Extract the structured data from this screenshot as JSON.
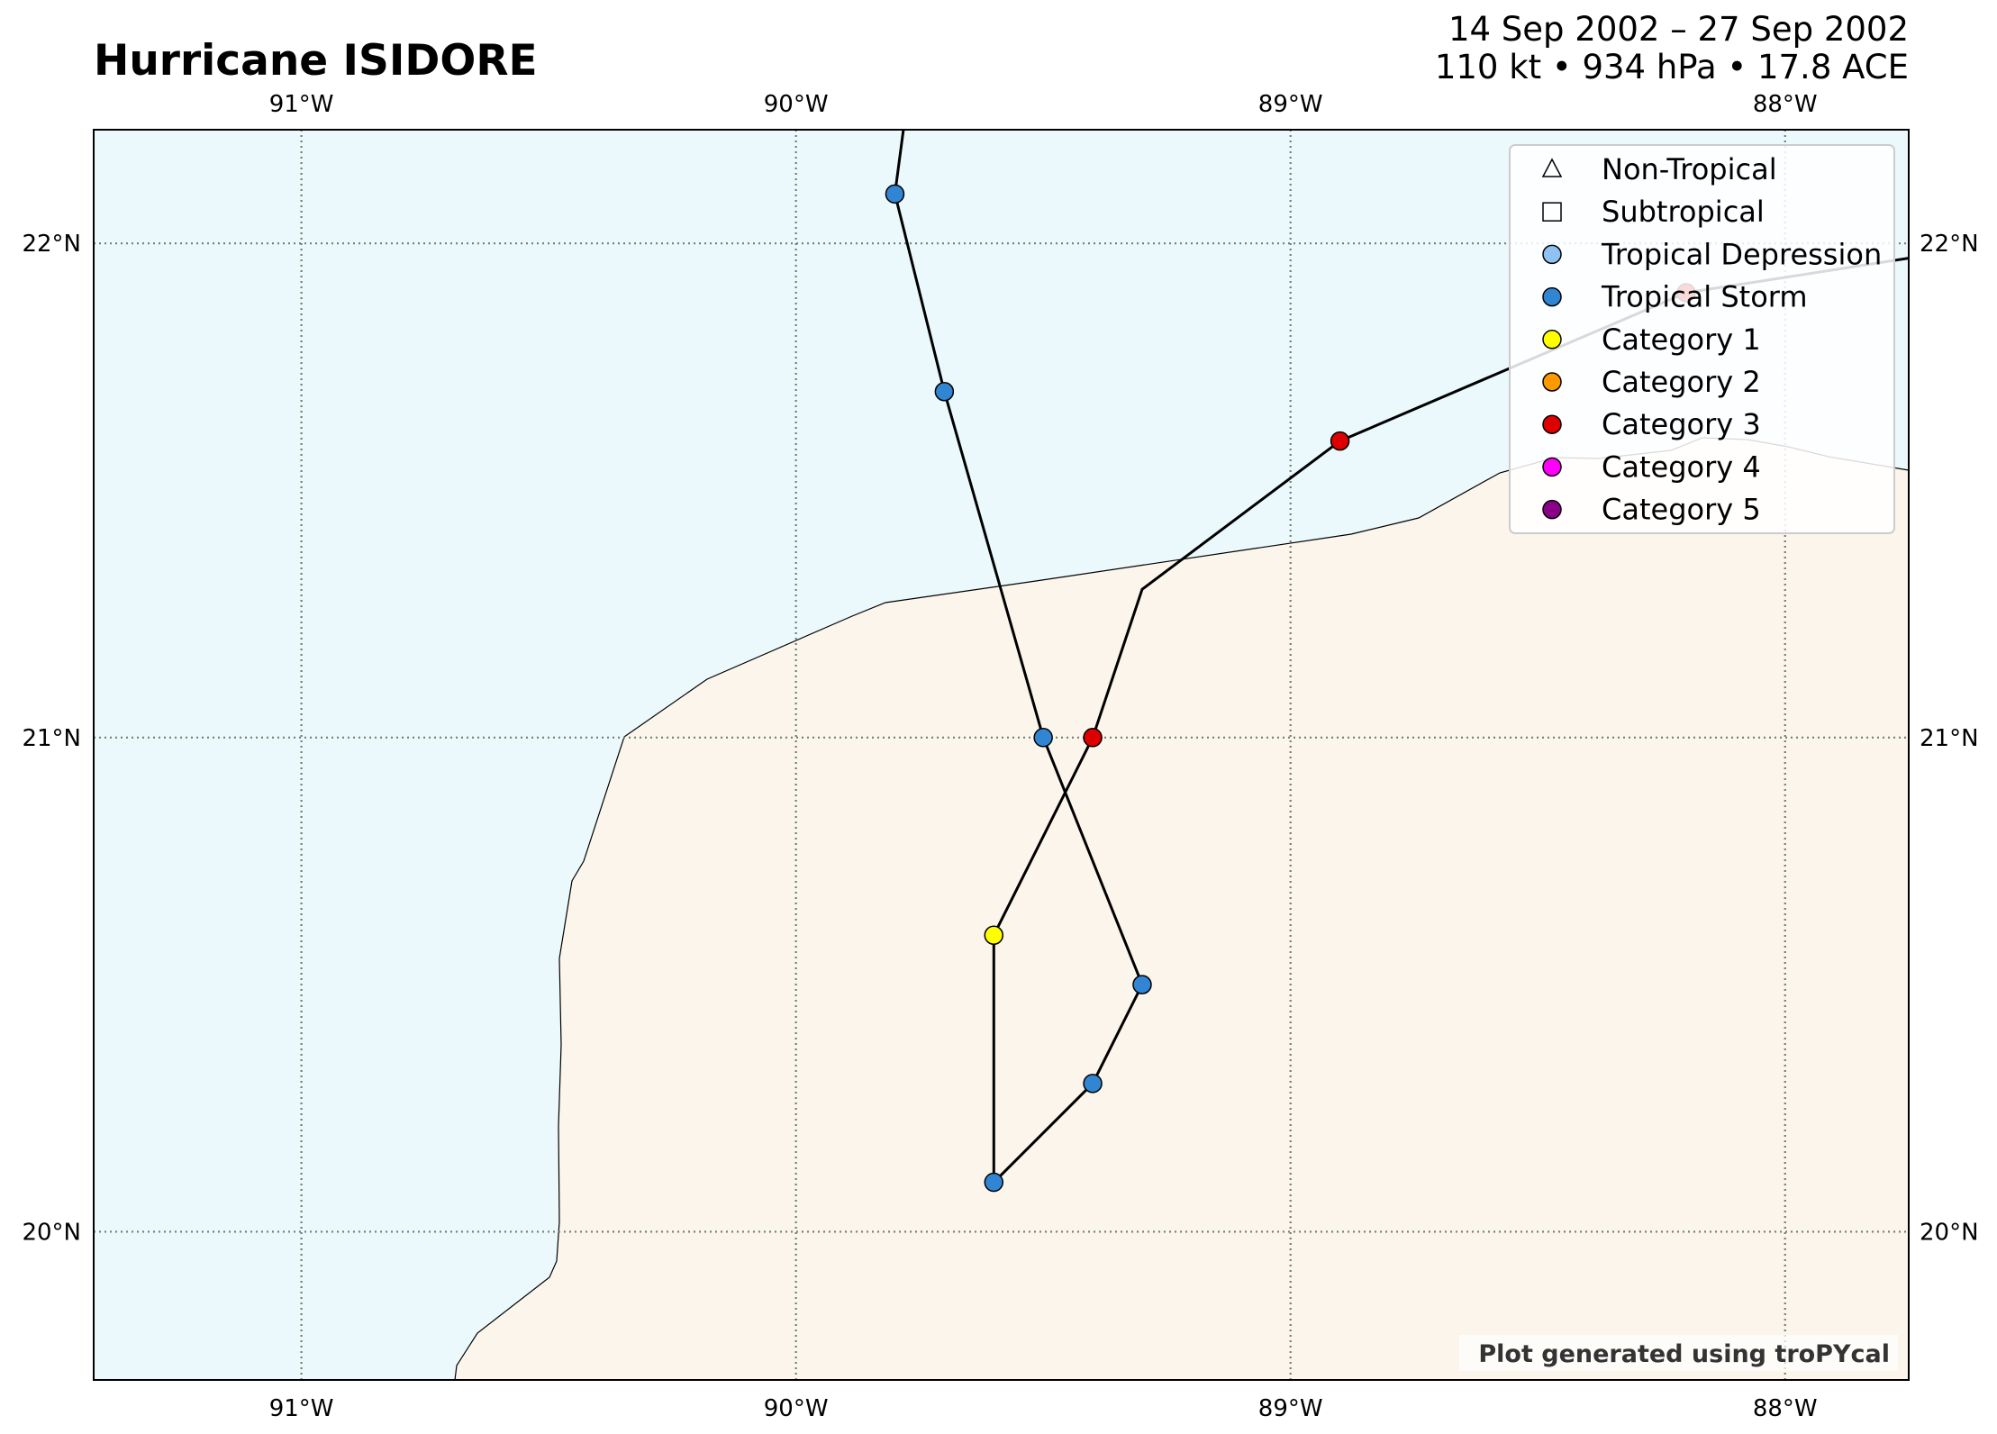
{
  "header": {
    "title": "Hurricane ISIDORE",
    "date_range": "14 Sep 2002 – 27 Sep 2002",
    "stats": "110 kt • 934 hPa • 17.8 ACE"
  },
  "map": {
    "lon_range": [
      -91.42,
      -87.75
    ],
    "lat_range": [
      19.7,
      22.23
    ],
    "lon_ticks": [
      {
        "value": -91,
        "label": "91°W"
      },
      {
        "value": -90,
        "label": "90°W"
      },
      {
        "value": -89,
        "label": "89°W"
      },
      {
        "value": -88,
        "label": "88°W"
      }
    ],
    "lat_ticks": [
      {
        "value": 20,
        "label": "20°N"
      },
      {
        "value": 21,
        "label": "21°N"
      },
      {
        "value": 22,
        "label": "22°N"
      }
    ],
    "gridlines": true,
    "colors": {
      "ocean": "#ebf9fd",
      "land": "#fbf5eb",
      "coastline": "#000000",
      "track": "#000000"
    }
  },
  "legend": {
    "position": "top-right",
    "items": [
      {
        "label": "Non-Tropical",
        "marker": "triangle",
        "color": "#ffffff"
      },
      {
        "label": "Subtropical",
        "marker": "square",
        "color": "#ffffff"
      },
      {
        "label": "Tropical Depression",
        "marker": "circle",
        "color": "#8fc2f2"
      },
      {
        "label": "Tropical Storm",
        "marker": "circle",
        "color": "#3185d3"
      },
      {
        "label": "Category 1",
        "marker": "circle",
        "color": "#ffff00"
      },
      {
        "label": "Category 2",
        "marker": "circle",
        "color": "#ff9900"
      },
      {
        "label": "Category 3",
        "marker": "circle",
        "color": "#dd0000"
      },
      {
        "label": "Category 4",
        "marker": "circle",
        "color": "#ff00fc"
      },
      {
        "label": "Category 5",
        "marker": "circle",
        "color": "#8b0088"
      }
    ]
  },
  "track": {
    "points": [
      {
        "lon": -89.78,
        "lat": 22.25,
        "category": "none"
      },
      {
        "lon": -89.8,
        "lat": 22.1,
        "category": "Tropical Storm"
      },
      {
        "lon": -89.7,
        "lat": 21.7,
        "category": "Tropical Storm"
      },
      {
        "lon": -89.5,
        "lat": 21.0,
        "category": "Tropical Storm"
      },
      {
        "lon": -89.3,
        "lat": 20.5,
        "category": "Tropical Storm"
      },
      {
        "lon": -89.4,
        "lat": 20.3,
        "category": "Tropical Storm"
      },
      {
        "lon": -89.6,
        "lat": 20.1,
        "category": "Tropical Storm"
      },
      {
        "lon": -89.6,
        "lat": 20.6,
        "category": "Category 1"
      },
      {
        "lon": -89.4,
        "lat": 21.0,
        "category": "Category 3"
      },
      {
        "lon": -89.3,
        "lat": 21.3,
        "category": "none"
      },
      {
        "lon": -88.9,
        "lat": 21.6,
        "category": "Category 3"
      },
      {
        "lon": -88.2,
        "lat": 21.9,
        "category": "Category 3"
      },
      {
        "lon": -87.75,
        "lat": 21.97,
        "category": "none"
      }
    ]
  },
  "credit": "Plot generated using troPYcal"
}
